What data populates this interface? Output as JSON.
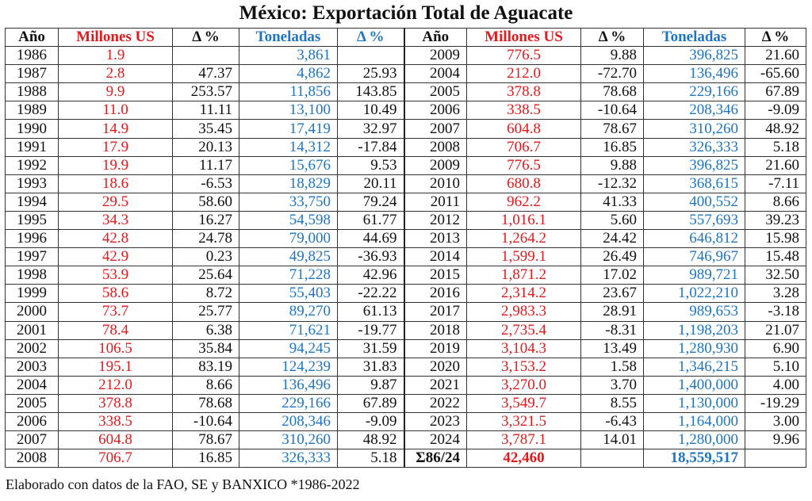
{
  "title": "México: Exportación Total de Aguacate",
  "headers": [
    "Año",
    "Millones US",
    "Δ %",
    "Toneladas",
    "Δ %",
    "Año",
    "Millones US",
    "Δ %",
    "Toneladas",
    "Δ %"
  ],
  "colors": {
    "millones": "#e3191c",
    "toneladas": "#1e75c3"
  },
  "left_rows": [
    [
      "1986",
      "1.9",
      "",
      "3,861",
      ""
    ],
    [
      "1987",
      "2.8",
      "47.37",
      "4,862",
      "25.93"
    ],
    [
      "1988",
      "9.9",
      "253.57",
      "11,856",
      "143.85"
    ],
    [
      "1989",
      "11.0",
      "11.11",
      "13,100",
      "10.49"
    ],
    [
      "1990",
      "14.9",
      "35.45",
      "17,419",
      "32.97"
    ],
    [
      "1991",
      "17.9",
      "20.13",
      "14,312",
      "-17.84"
    ],
    [
      "1992",
      "19.9",
      "11.17",
      "15,676",
      "9.53"
    ],
    [
      "1993",
      "18.6",
      "-6.53",
      "18,829",
      "20.11"
    ],
    [
      "1994",
      "29.5",
      "58.60",
      "33,750",
      "79.24"
    ],
    [
      "1995",
      "34.3",
      "16.27",
      "54,598",
      "61.77"
    ],
    [
      "1996",
      "42.8",
      "24.78",
      "79,000",
      "44.69"
    ],
    [
      "1997",
      "42.9",
      "0.23",
      "49,825",
      "-36.93"
    ],
    [
      "1998",
      "53.9",
      "25.64",
      "71,228",
      "42.96"
    ],
    [
      "1999",
      "58.6",
      "8.72",
      "55,403",
      "-22.22"
    ],
    [
      "2000",
      "73.7",
      "25.77",
      "89,270",
      "61.13"
    ],
    [
      "2001",
      "78.4",
      "6.38",
      "71,621",
      "-19.77"
    ],
    [
      "2002",
      "106.5",
      "35.84",
      "94,245",
      "31.59"
    ],
    [
      "2003",
      "195.1",
      "83.19",
      "124,239",
      "31.83"
    ],
    [
      "2004",
      "212.0",
      "8.66",
      "136,496",
      "9.87"
    ],
    [
      "2005",
      "378.8",
      "78.68",
      "229,166",
      "67.89"
    ],
    [
      "2006",
      "338.5",
      "-10.64",
      "208,346",
      "-9.09"
    ],
    [
      "2007",
      "604.8",
      "78.67",
      "310,260",
      "48.92"
    ],
    [
      "2008",
      "706.7",
      "16.85",
      "326,333",
      "5.18"
    ]
  ],
  "right_rows": [
    [
      "2009",
      "776.5",
      "9.88",
      "396,825",
      "21.60"
    ],
    [
      "2004",
      "212.0",
      "-72.70",
      "136,496",
      "-65.60"
    ],
    [
      "2005",
      "378.8",
      "78.68",
      "229,166",
      "67.89"
    ],
    [
      "2006",
      "338.5",
      "-10.64",
      "208,346",
      "-9.09"
    ],
    [
      "2007",
      "604.8",
      "78.67",
      "310,260",
      "48.92"
    ],
    [
      "2008",
      "706.7",
      "16.85",
      "326,333",
      "5.18"
    ],
    [
      "2009",
      "776.5",
      "9.88",
      "396,825",
      "21.60"
    ],
    [
      "2010",
      "680.8",
      "-12.32",
      "368,615",
      "-7.11"
    ],
    [
      "2011",
      "962.2",
      "41.33",
      "400,552",
      "8.66"
    ],
    [
      "2012",
      "1,016.1",
      "5.60",
      "557,693",
      "39.23"
    ],
    [
      "2013",
      "1,264.2",
      "24.42",
      "646,812",
      "15.98"
    ],
    [
      "2014",
      "1,599.1",
      "26.49",
      "746,967",
      "15.48"
    ],
    [
      "2015",
      "1,871.2",
      "17.02",
      "989,721",
      "32.50"
    ],
    [
      "2016",
      "2,314.2",
      "23.67",
      "1,022,210",
      "3.28"
    ],
    [
      "2017",
      "2,983.3",
      "28.91",
      "989,653",
      "-3.18"
    ],
    [
      "2018",
      "2,735.4",
      "-8.31",
      "1,198,203",
      "21.07"
    ],
    [
      "2019",
      "3,104.3",
      "13.49",
      "1,280,930",
      "6.90"
    ],
    [
      "2020",
      "3,153.2",
      "1.58",
      "1,346,215",
      "5.10"
    ],
    [
      "2021",
      "3,270.0",
      "3.70",
      "1,400,000",
      "4.00"
    ],
    [
      "2022",
      "3,549.7",
      "8.55",
      "1,130,000",
      "-19.29"
    ],
    [
      "2023",
      "3,321.5",
      "-6.43",
      "1,164,000",
      "3.00"
    ],
    [
      "2024",
      "3,787.1",
      "14.01",
      "1,280,000",
      "9.96"
    ],
    [
      "Σ86/24",
      "42,460",
      "",
      "18,559,517",
      ""
    ]
  ],
  "footer": "Elaborado con datos de la FAO, SE y BANXICO *1986-2022"
}
